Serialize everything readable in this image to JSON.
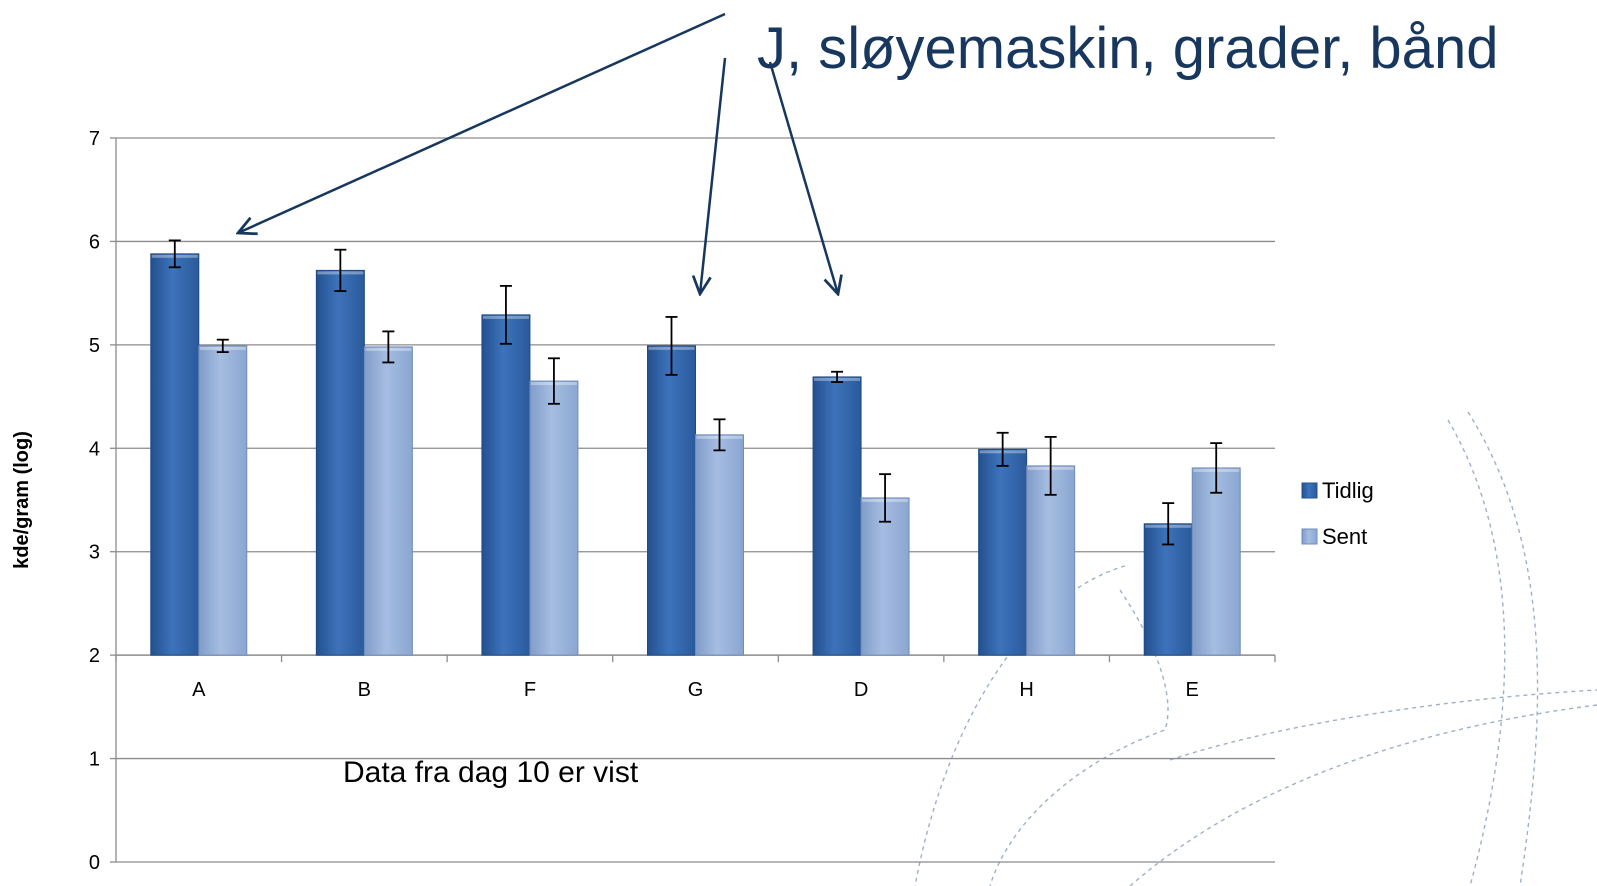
{
  "headline": "J, sløyemaskin, grader, bånd",
  "note": "Data fra dag 10 er vist",
  "chart_data": {
    "type": "bar",
    "title": "",
    "xlabel": "",
    "ylabel": "kde/gram (log)",
    "ylim": [
      0,
      7
    ],
    "yticks": [
      0,
      1,
      2,
      3,
      4,
      5,
      6,
      7
    ],
    "grid": true,
    "legend_position": "right",
    "categories": [
      "A",
      "B",
      "F",
      "G",
      "D",
      "H",
      "E"
    ],
    "series": [
      {
        "name": "Tidlig",
        "color": "#3a6fb5",
        "values": [
          5.88,
          5.72,
          5.29,
          4.99,
          4.69,
          3.99,
          3.27
        ],
        "errors": [
          0.13,
          0.2,
          0.28,
          0.28,
          0.05,
          0.16,
          0.2
        ]
      },
      {
        "name": "Sent",
        "color": "#94aed6",
        "values": [
          4.99,
          4.98,
          4.65,
          4.13,
          3.52,
          3.83,
          3.81
        ],
        "errors": [
          0.06,
          0.15,
          0.22,
          0.15,
          0.23,
          0.28,
          0.24
        ]
      }
    ],
    "annotations": [
      "headline arrows point to A, G and D"
    ]
  }
}
